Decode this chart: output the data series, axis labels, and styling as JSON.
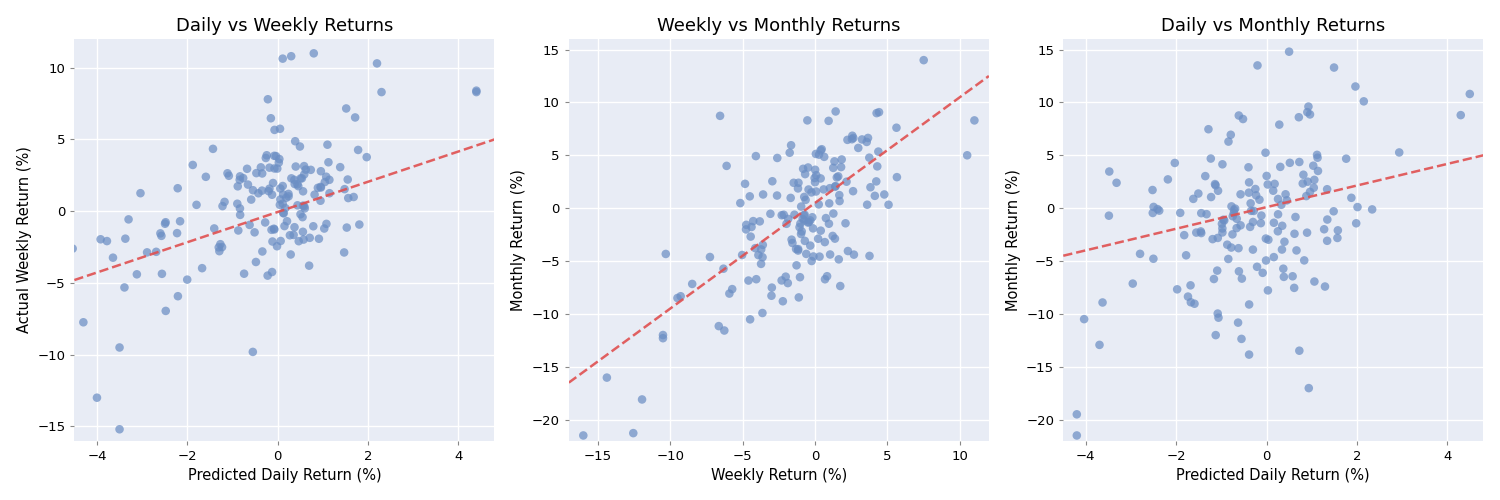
{
  "plots": [
    {
      "title": "Daily vs Weekly Returns",
      "xlabel": "Predicted Daily Return (%)",
      "ylabel": "Actual Weekly Return (%)",
      "xlim": [
        -4.5,
        4.8
      ],
      "ylim": [
        -16,
        12
      ],
      "line_x": [
        -4.5,
        4.8
      ],
      "line_y": [
        -4.8,
        5.0
      ]
    },
    {
      "title": "Weekly vs Monthly Returns",
      "xlabel": "Weekly Return (%)",
      "ylabel": "Monthly Return (%)",
      "xlim": [
        -17,
        12
      ],
      "ylim": [
        -22,
        16
      ],
      "line_x": [
        -17,
        12
      ],
      "line_y": [
        -16.5,
        12.5
      ]
    },
    {
      "title": "Daily vs Monthly Returns",
      "xlabel": "Predicted Daily Return (%)",
      "ylabel": "Monthly Return (%)",
      "xlim": [
        -4.5,
        4.8
      ],
      "ylim": [
        -22,
        16
      ],
      "line_x": [
        -4.5,
        4.8
      ],
      "line_y": [
        -4.5,
        5.0
      ]
    }
  ],
  "dot_color": "#6b8ec4",
  "dot_alpha": 0.72,
  "dot_size": 38,
  "line_color": "#e05050",
  "line_alpha": 0.9,
  "line_width": 1.8,
  "bg_color": "#e8ecf5",
  "grid_color": "white",
  "fig_bg": "#ffffff",
  "title_fontsize": 13,
  "label_fontsize": 10.5
}
